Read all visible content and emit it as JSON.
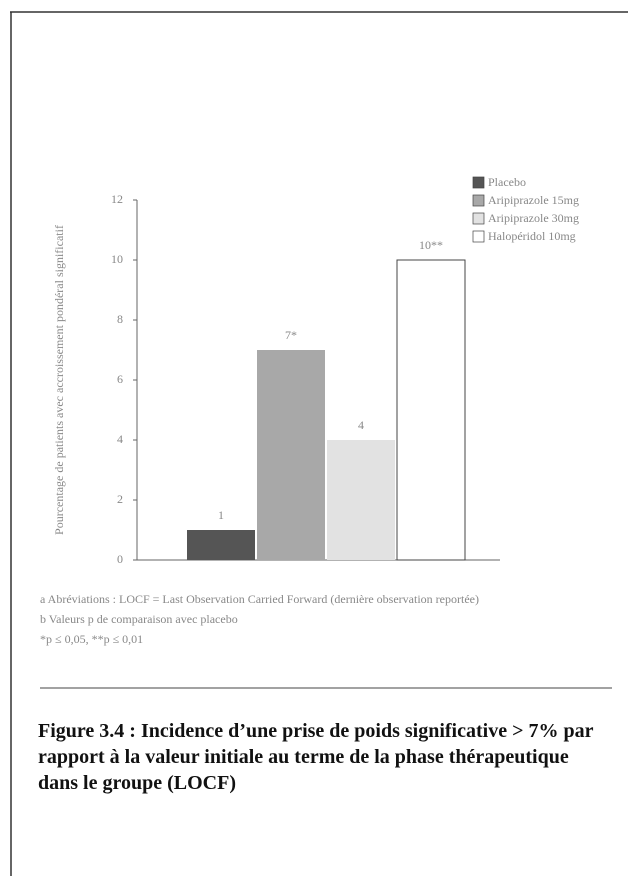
{
  "chart_data": {
    "type": "bar",
    "ylabel": "Pourcentage de patients avec accroissement pondéral significatif",
    "series": [
      {
        "name": "Placebo",
        "color": "#555555",
        "values": [
          1
        ],
        "value_labels": [
          "1"
        ]
      },
      {
        "name": "Aripiprazole 15mg",
        "color": "#a8a8a8",
        "values": [
          7
        ],
        "value_labels": [
          "7*"
        ]
      },
      {
        "name": "Aripiprazole 30mg",
        "color": "#e2e2e2",
        "values": [
          4
        ],
        "value_labels": [
          "4"
        ]
      },
      {
        "name": "Halopéridol 10mg",
        "color": "#ffffff",
        "values": [
          10
        ],
        "value_labels": [
          "10**"
        ]
      }
    ],
    "ylim": [
      0,
      12
    ],
    "yticks": [
      0,
      2,
      4,
      6,
      8,
      10,
      12
    ],
    "legend": "top-right",
    "notes": [
      "a Abréviations : LOCF = Last Observation Carried Forward (dernière observation reportée)",
      "b Valeurs p de comparaison avec placebo",
      "*p ≤ 0,05, **p ≤ 0,01"
    ]
  },
  "caption": "Figure 3.4 : Incidence d’une prise de poids significative > 7% par rapport à la valeur initiale au terme de la phase thérapeutique dans le groupe (LOCF)"
}
